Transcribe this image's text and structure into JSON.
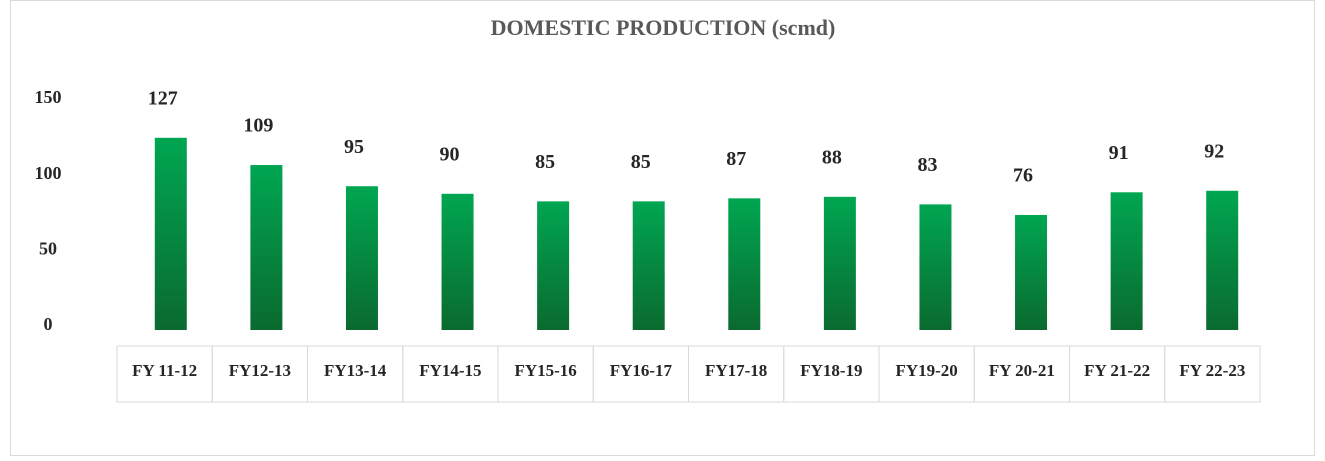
{
  "chart_data": {
    "type": "bar",
    "title": "DOMESTIC PRODUCTION (scmd)",
    "categories": [
      "FY 11-12",
      "FY12-13",
      "FY13-14",
      "FY14-15",
      "FY15-16",
      "FY16-17",
      "FY17-18",
      "FY18-19",
      "FY19-20",
      "FY 20-21",
      "FY 21-22",
      "FY 22-23"
    ],
    "values": [
      127,
      109,
      95,
      90,
      85,
      85,
      87,
      88,
      83,
      76,
      91,
      92
    ],
    "color": "#00a651",
    "ylim": [
      0,
      150
    ],
    "yticks": [
      0,
      50,
      100,
      150
    ],
    "grid": false
  }
}
